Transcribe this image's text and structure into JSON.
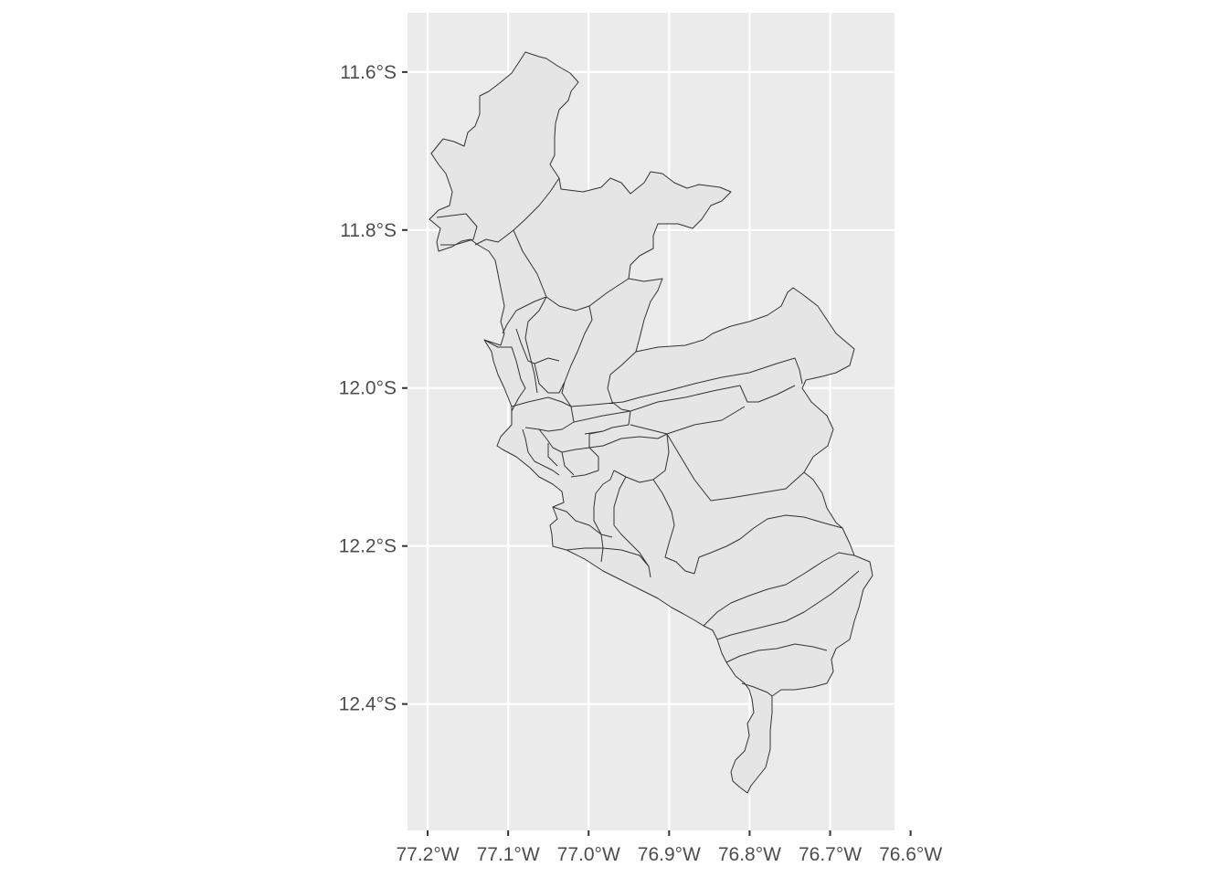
{
  "colors": {
    "panel_background": "#ebebeb",
    "grid_line": "#ffffff",
    "polygon_fill": "#e5e5e5",
    "polygon_border": "#333333",
    "tick_label": "#4d4d4d"
  },
  "map": {
    "projection": "geographic (longitude / latitude)",
    "x_axis": {
      "ticks": [
        {
          "value": -77.2,
          "label": "77.2°W"
        },
        {
          "value": -77.1,
          "label": "77.1°W"
        },
        {
          "value": -77.0,
          "label": "77.0°W"
        },
        {
          "value": -76.9,
          "label": "76.9°W"
        },
        {
          "value": -76.8,
          "label": "76.8°W"
        },
        {
          "value": -76.7,
          "label": "76.7°W"
        },
        {
          "value": -76.6,
          "label": "76.6°W"
        }
      ],
      "range": [
        -77.225,
        -76.62
      ]
    },
    "y_axis": {
      "ticks": [
        {
          "value": -11.6,
          "label": "11.6°S"
        },
        {
          "value": -11.8,
          "label": "11.8°S"
        },
        {
          "value": -12.0,
          "label": "12.0°S"
        },
        {
          "value": -12.2,
          "label": "12.2°S"
        },
        {
          "value": -12.4,
          "label": "12.4°S"
        }
      ],
      "range": [
        -12.56,
        -11.525
      ]
    },
    "grid": "on"
  }
}
